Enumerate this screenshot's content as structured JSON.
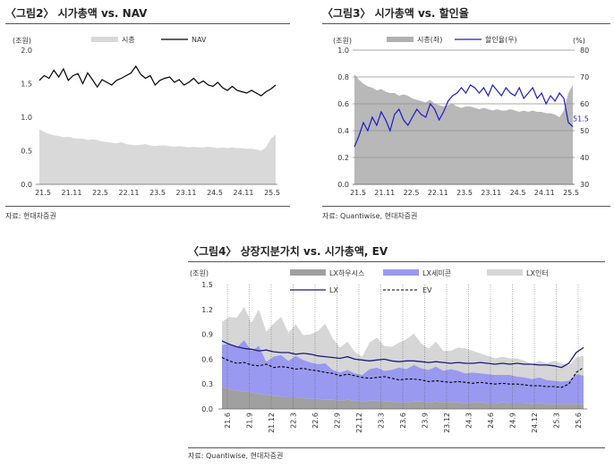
{
  "charts": {
    "fig2": {
      "title": "〈그림2〉 시가총액 vs. NAV",
      "source": "자료: 현대차증권",
      "unit": "(조원)",
      "legend": [
        "시총",
        "NAV"
      ]
    },
    "fig3": {
      "title": "〈그림3〉 시가총액 vs. 할인율",
      "source": "자료: Quantiwise, 현대차증권",
      "unit_left": "(조원)",
      "unit_right": "(%)",
      "legend": [
        "시총(좌)",
        "할인율(우)"
      ],
      "end_label": "51.5"
    },
    "fig4": {
      "title": "〈그림4〉 상장지분가치 vs. 시가총액, EV",
      "source": "자료: Quantiwise, 현대차증권",
      "unit": "(조원)",
      "legend": [
        "LX하우시스",
        "LX세미콘",
        "LX인터",
        "LX",
        "EV"
      ]
    }
  },
  "chart_data": [
    {
      "type": "area+line",
      "title": "〈그림2〉 시가총액 vs. NAV",
      "ylabel": "(조원)",
      "ylim": [
        0,
        2.0
      ],
      "yticks": [
        "0.0",
        "0.5",
        "1.0",
        "1.5",
        "2.0"
      ],
      "xticks": [
        "21.5",
        "21.11",
        "22.5",
        "22.11",
        "23.5",
        "23.11",
        "24.5",
        "24.11",
        "25.5"
      ],
      "x_domain": [
        0,
        49
      ],
      "colors": {
        "시총": "#d9d9d9",
        "NAV": "#000000"
      },
      "series": [
        {
          "name": "시총",
          "kind": "area",
          "x": [
            0,
            1,
            2,
            3,
            4,
            5,
            6,
            7,
            8,
            9,
            10,
            11,
            12,
            13,
            14,
            15,
            16,
            17,
            18,
            19,
            20,
            21,
            22,
            23,
            24,
            25,
            26,
            27,
            28,
            29,
            30,
            31,
            32,
            33,
            34,
            35,
            36,
            37,
            38,
            39,
            40,
            41,
            42,
            43,
            44,
            45,
            46,
            47,
            48,
            49
          ],
          "values": [
            0.82,
            0.78,
            0.75,
            0.73,
            0.72,
            0.7,
            0.71,
            0.69,
            0.68,
            0.68,
            0.66,
            0.67,
            0.66,
            0.64,
            0.63,
            0.62,
            0.61,
            0.63,
            0.6,
            0.59,
            0.58,
            0.59,
            0.6,
            0.58,
            0.57,
            0.58,
            0.58,
            0.57,
            0.56,
            0.57,
            0.56,
            0.55,
            0.56,
            0.55,
            0.55,
            0.56,
            0.55,
            0.54,
            0.55,
            0.54,
            0.55,
            0.54,
            0.54,
            0.53,
            0.53,
            0.52,
            0.5,
            0.55,
            0.68,
            0.74
          ]
        },
        {
          "name": "NAV",
          "kind": "line",
          "x": [
            0,
            1,
            2,
            3,
            4,
            5,
            6,
            7,
            8,
            9,
            10,
            11,
            12,
            13,
            14,
            15,
            16,
            17,
            18,
            19,
            20,
            21,
            22,
            23,
            24,
            25,
            26,
            27,
            28,
            29,
            30,
            31,
            32,
            33,
            34,
            35,
            36,
            37,
            38,
            39,
            40,
            41,
            42,
            43,
            44,
            45,
            46,
            47,
            48,
            49
          ],
          "values": [
            1.55,
            1.62,
            1.58,
            1.7,
            1.6,
            1.72,
            1.55,
            1.62,
            1.65,
            1.5,
            1.66,
            1.56,
            1.45,
            1.56,
            1.52,
            1.48,
            1.55,
            1.58,
            1.62,
            1.66,
            1.76,
            1.64,
            1.58,
            1.62,
            1.48,
            1.55,
            1.58,
            1.6,
            1.52,
            1.56,
            1.48,
            1.52,
            1.58,
            1.5,
            1.54,
            1.48,
            1.46,
            1.52,
            1.44,
            1.4,
            1.46,
            1.4,
            1.38,
            1.36,
            1.4,
            1.36,
            1.32,
            1.38,
            1.42,
            1.48
          ]
        }
      ]
    },
    {
      "type": "area+line",
      "title": "〈그림3〉 시가총액 vs. 할인율",
      "ylabel": "(조원)",
      "y2label": "(%)",
      "ylim": [
        0,
        1.0
      ],
      "y2lim": [
        30,
        80
      ],
      "yticks": [
        "0.0",
        "0.2",
        "0.4",
        "0.6",
        "0.8",
        "1.0"
      ],
      "y2ticks": [
        "30",
        "40",
        "50",
        "60",
        "70",
        "80"
      ],
      "xticks": [
        "21.5",
        "21.11",
        "22.5",
        "22.11",
        "23.5",
        "23.11",
        "24.5",
        "24.11",
        "25.5"
      ],
      "x_domain": [
        0,
        49
      ],
      "annotation": "51.5",
      "colors": {
        "시총(좌)": "#b0b0b0",
        "할인율(우)": "#1a1acc"
      },
      "series": [
        {
          "name": "시총(좌)",
          "kind": "area",
          "axis": "left",
          "x": [
            0,
            1,
            2,
            3,
            4,
            5,
            6,
            7,
            8,
            9,
            10,
            11,
            12,
            13,
            14,
            15,
            16,
            17,
            18,
            19,
            20,
            21,
            22,
            23,
            24,
            25,
            26,
            27,
            28,
            29,
            30,
            31,
            32,
            33,
            34,
            35,
            36,
            37,
            38,
            39,
            40,
            41,
            42,
            43,
            44,
            45,
            46,
            47,
            48,
            49
          ],
          "values": [
            0.82,
            0.78,
            0.75,
            0.73,
            0.72,
            0.7,
            0.71,
            0.69,
            0.68,
            0.68,
            0.66,
            0.67,
            0.66,
            0.64,
            0.63,
            0.62,
            0.61,
            0.63,
            0.6,
            0.59,
            0.58,
            0.59,
            0.6,
            0.58,
            0.57,
            0.58,
            0.58,
            0.57,
            0.56,
            0.57,
            0.56,
            0.55,
            0.56,
            0.55,
            0.55,
            0.56,
            0.55,
            0.54,
            0.55,
            0.54,
            0.55,
            0.54,
            0.54,
            0.53,
            0.53,
            0.52,
            0.5,
            0.55,
            0.68,
            0.74
          ]
        },
        {
          "name": "할인율(우)",
          "kind": "line",
          "axis": "right",
          "x": [
            0,
            1,
            2,
            3,
            4,
            5,
            6,
            7,
            8,
            9,
            10,
            11,
            12,
            13,
            14,
            15,
            16,
            17,
            18,
            19,
            20,
            21,
            22,
            23,
            24,
            25,
            26,
            27,
            28,
            29,
            30,
            31,
            32,
            33,
            34,
            35,
            36,
            37,
            38,
            39,
            40,
            41,
            42,
            43,
            44,
            45,
            46,
            47,
            48,
            49
          ],
          "values": [
            44,
            48,
            53,
            50,
            55,
            52,
            57,
            54,
            50,
            56,
            58,
            54,
            52,
            55,
            58,
            56,
            55,
            60,
            58,
            54,
            57,
            61,
            63,
            64,
            66,
            64,
            67,
            66,
            64,
            66,
            63,
            67,
            65,
            63,
            66,
            64,
            63,
            66,
            62,
            64,
            66,
            62,
            64,
            60,
            63,
            61,
            64,
            62,
            53,
            51.5
          ]
        }
      ]
    },
    {
      "type": "area+line",
      "title": "〈그림4〉 상장지분가치 vs. 시가총액, EV",
      "ylabel": "(조원)",
      "ylim": [
        0,
        1.5
      ],
      "yticks": [
        "0.0",
        "0.3",
        "0.6",
        "0.9",
        "1.2",
        "1.5"
      ],
      "xticks": [
        "21.6",
        "21.9",
        "21.12",
        "22.3",
        "22.6",
        "22.9",
        "22.12",
        "23.3",
        "23.6",
        "23.9",
        "23.12",
        "24.3",
        "24.6",
        "24.9",
        "24.12",
        "25.3",
        "25.6"
      ],
      "x_domain": [
        0,
        49
      ],
      "stacked_areas": true,
      "colors": {
        "LX하우시스": "#a0a0a0",
        "LX세미콘": "#9999f0",
        "LX인터": "#d6d6d6",
        "LX": "#1a1a80",
        "EV": "#000000"
      },
      "series": [
        {
          "name": "LX하우시스",
          "kind": "area",
          "x": [
            0,
            1,
            2,
            3,
            4,
            5,
            6,
            7,
            8,
            9,
            10,
            11,
            12,
            13,
            14,
            15,
            16,
            17,
            18,
            19,
            20,
            21,
            22,
            23,
            24,
            25,
            26,
            27,
            28,
            29,
            30,
            31,
            32,
            33,
            34,
            35,
            36,
            37,
            38,
            39,
            40,
            41,
            42,
            43,
            44,
            45,
            46,
            47,
            48,
            49
          ],
          "values": [
            0.27,
            0.24,
            0.22,
            0.21,
            0.2,
            0.18,
            0.17,
            0.16,
            0.15,
            0.14,
            0.14,
            0.13,
            0.12,
            0.12,
            0.11,
            0.11,
            0.1,
            0.11,
            0.1,
            0.09,
            0.1,
            0.1,
            0.09,
            0.09,
            0.08,
            0.08,
            0.09,
            0.09,
            0.08,
            0.09,
            0.08,
            0.08,
            0.08,
            0.07,
            0.08,
            0.08,
            0.07,
            0.07,
            0.08,
            0.07,
            0.07,
            0.07,
            0.06,
            0.07,
            0.06,
            0.06,
            0.06,
            0.06,
            0.06,
            0.06
          ]
        },
        {
          "name": "LX세미콘",
          "kind": "area",
          "x": [
            0,
            1,
            2,
            3,
            4,
            5,
            6,
            7,
            8,
            9,
            10,
            11,
            12,
            13,
            14,
            15,
            16,
            17,
            18,
            19,
            20,
            21,
            22,
            23,
            24,
            25,
            26,
            27,
            28,
            29,
            30,
            31,
            32,
            33,
            34,
            35,
            36,
            37,
            38,
            39,
            40,
            41,
            42,
            43,
            44,
            45,
            46,
            47,
            48,
            49
          ],
          "values": [
            0.5,
            0.55,
            0.52,
            0.62,
            0.5,
            0.58,
            0.4,
            0.47,
            0.5,
            0.44,
            0.5,
            0.46,
            0.44,
            0.42,
            0.44,
            0.36,
            0.34,
            0.36,
            0.33,
            0.32,
            0.38,
            0.4,
            0.37,
            0.38,
            0.42,
            0.4,
            0.44,
            0.4,
            0.39,
            0.42,
            0.38,
            0.4,
            0.38,
            0.36,
            0.36,
            0.35,
            0.35,
            0.34,
            0.33,
            0.34,
            0.32,
            0.31,
            0.3,
            0.31,
            0.29,
            0.28,
            0.27,
            0.28,
            0.36,
            0.34
          ]
        },
        {
          "name": "LX인터",
          "kind": "area",
          "x": [
            0,
            1,
            2,
            3,
            4,
            5,
            6,
            7,
            8,
            9,
            10,
            11,
            12,
            13,
            14,
            15,
            16,
            17,
            18,
            19,
            20,
            21,
            22,
            23,
            24,
            25,
            26,
            27,
            28,
            29,
            30,
            31,
            32,
            33,
            34,
            35,
            36,
            37,
            38,
            39,
            40,
            41,
            42,
            43,
            44,
            45,
            46,
            47,
            48,
            49
          ],
          "values": [
            0.28,
            0.32,
            0.36,
            0.4,
            0.34,
            0.44,
            0.36,
            0.4,
            0.46,
            0.34,
            0.38,
            0.3,
            0.34,
            0.4,
            0.48,
            0.38,
            0.3,
            0.34,
            0.26,
            0.22,
            0.32,
            0.36,
            0.3,
            0.28,
            0.3,
            0.36,
            0.38,
            0.3,
            0.26,
            0.3,
            0.24,
            0.22,
            0.28,
            0.3,
            0.26,
            0.24,
            0.22,
            0.2,
            0.22,
            0.2,
            0.22,
            0.2,
            0.18,
            0.2,
            0.2,
            0.24,
            0.22,
            0.18,
            0.2,
            0.24
          ]
        },
        {
          "name": "LX",
          "kind": "line",
          "x": [
            0,
            1,
            2,
            3,
            4,
            5,
            6,
            7,
            8,
            9,
            10,
            11,
            12,
            13,
            14,
            15,
            16,
            17,
            18,
            19,
            20,
            21,
            22,
            23,
            24,
            25,
            26,
            27,
            28,
            29,
            30,
            31,
            32,
            33,
            34,
            35,
            36,
            37,
            38,
            39,
            40,
            41,
            42,
            43,
            44,
            45,
            46,
            47,
            48,
            49
          ],
          "values": [
            0.82,
            0.78,
            0.75,
            0.73,
            0.72,
            0.7,
            0.71,
            0.69,
            0.68,
            0.68,
            0.66,
            0.67,
            0.66,
            0.64,
            0.63,
            0.62,
            0.61,
            0.63,
            0.6,
            0.59,
            0.58,
            0.59,
            0.6,
            0.58,
            0.57,
            0.58,
            0.58,
            0.57,
            0.56,
            0.57,
            0.56,
            0.55,
            0.56,
            0.55,
            0.55,
            0.56,
            0.55,
            0.54,
            0.55,
            0.54,
            0.55,
            0.54,
            0.54,
            0.53,
            0.53,
            0.52,
            0.5,
            0.55,
            0.68,
            0.74
          ]
        },
        {
          "name": "EV",
          "kind": "line",
          "dashed": true,
          "x": [
            0,
            1,
            2,
            3,
            4,
            5,
            6,
            7,
            8,
            9,
            10,
            11,
            12,
            13,
            14,
            15,
            16,
            17,
            18,
            19,
            20,
            21,
            22,
            23,
            24,
            25,
            26,
            27,
            28,
            29,
            30,
            31,
            32,
            33,
            34,
            35,
            36,
            37,
            38,
            39,
            40,
            41,
            42,
            43,
            44,
            45,
            46,
            47,
            48,
            49
          ],
          "values": [
            0.62,
            0.58,
            0.55,
            0.56,
            0.53,
            0.52,
            0.54,
            0.5,
            0.51,
            0.5,
            0.48,
            0.49,
            0.47,
            0.46,
            0.44,
            0.43,
            0.4,
            0.42,
            0.4,
            0.38,
            0.37,
            0.38,
            0.39,
            0.37,
            0.35,
            0.36,
            0.36,
            0.35,
            0.33,
            0.34,
            0.33,
            0.32,
            0.33,
            0.32,
            0.31,
            0.32,
            0.31,
            0.3,
            0.31,
            0.3,
            0.3,
            0.29,
            0.28,
            0.28,
            0.27,
            0.27,
            0.26,
            0.3,
            0.44,
            0.5
          ]
        }
      ]
    }
  ]
}
